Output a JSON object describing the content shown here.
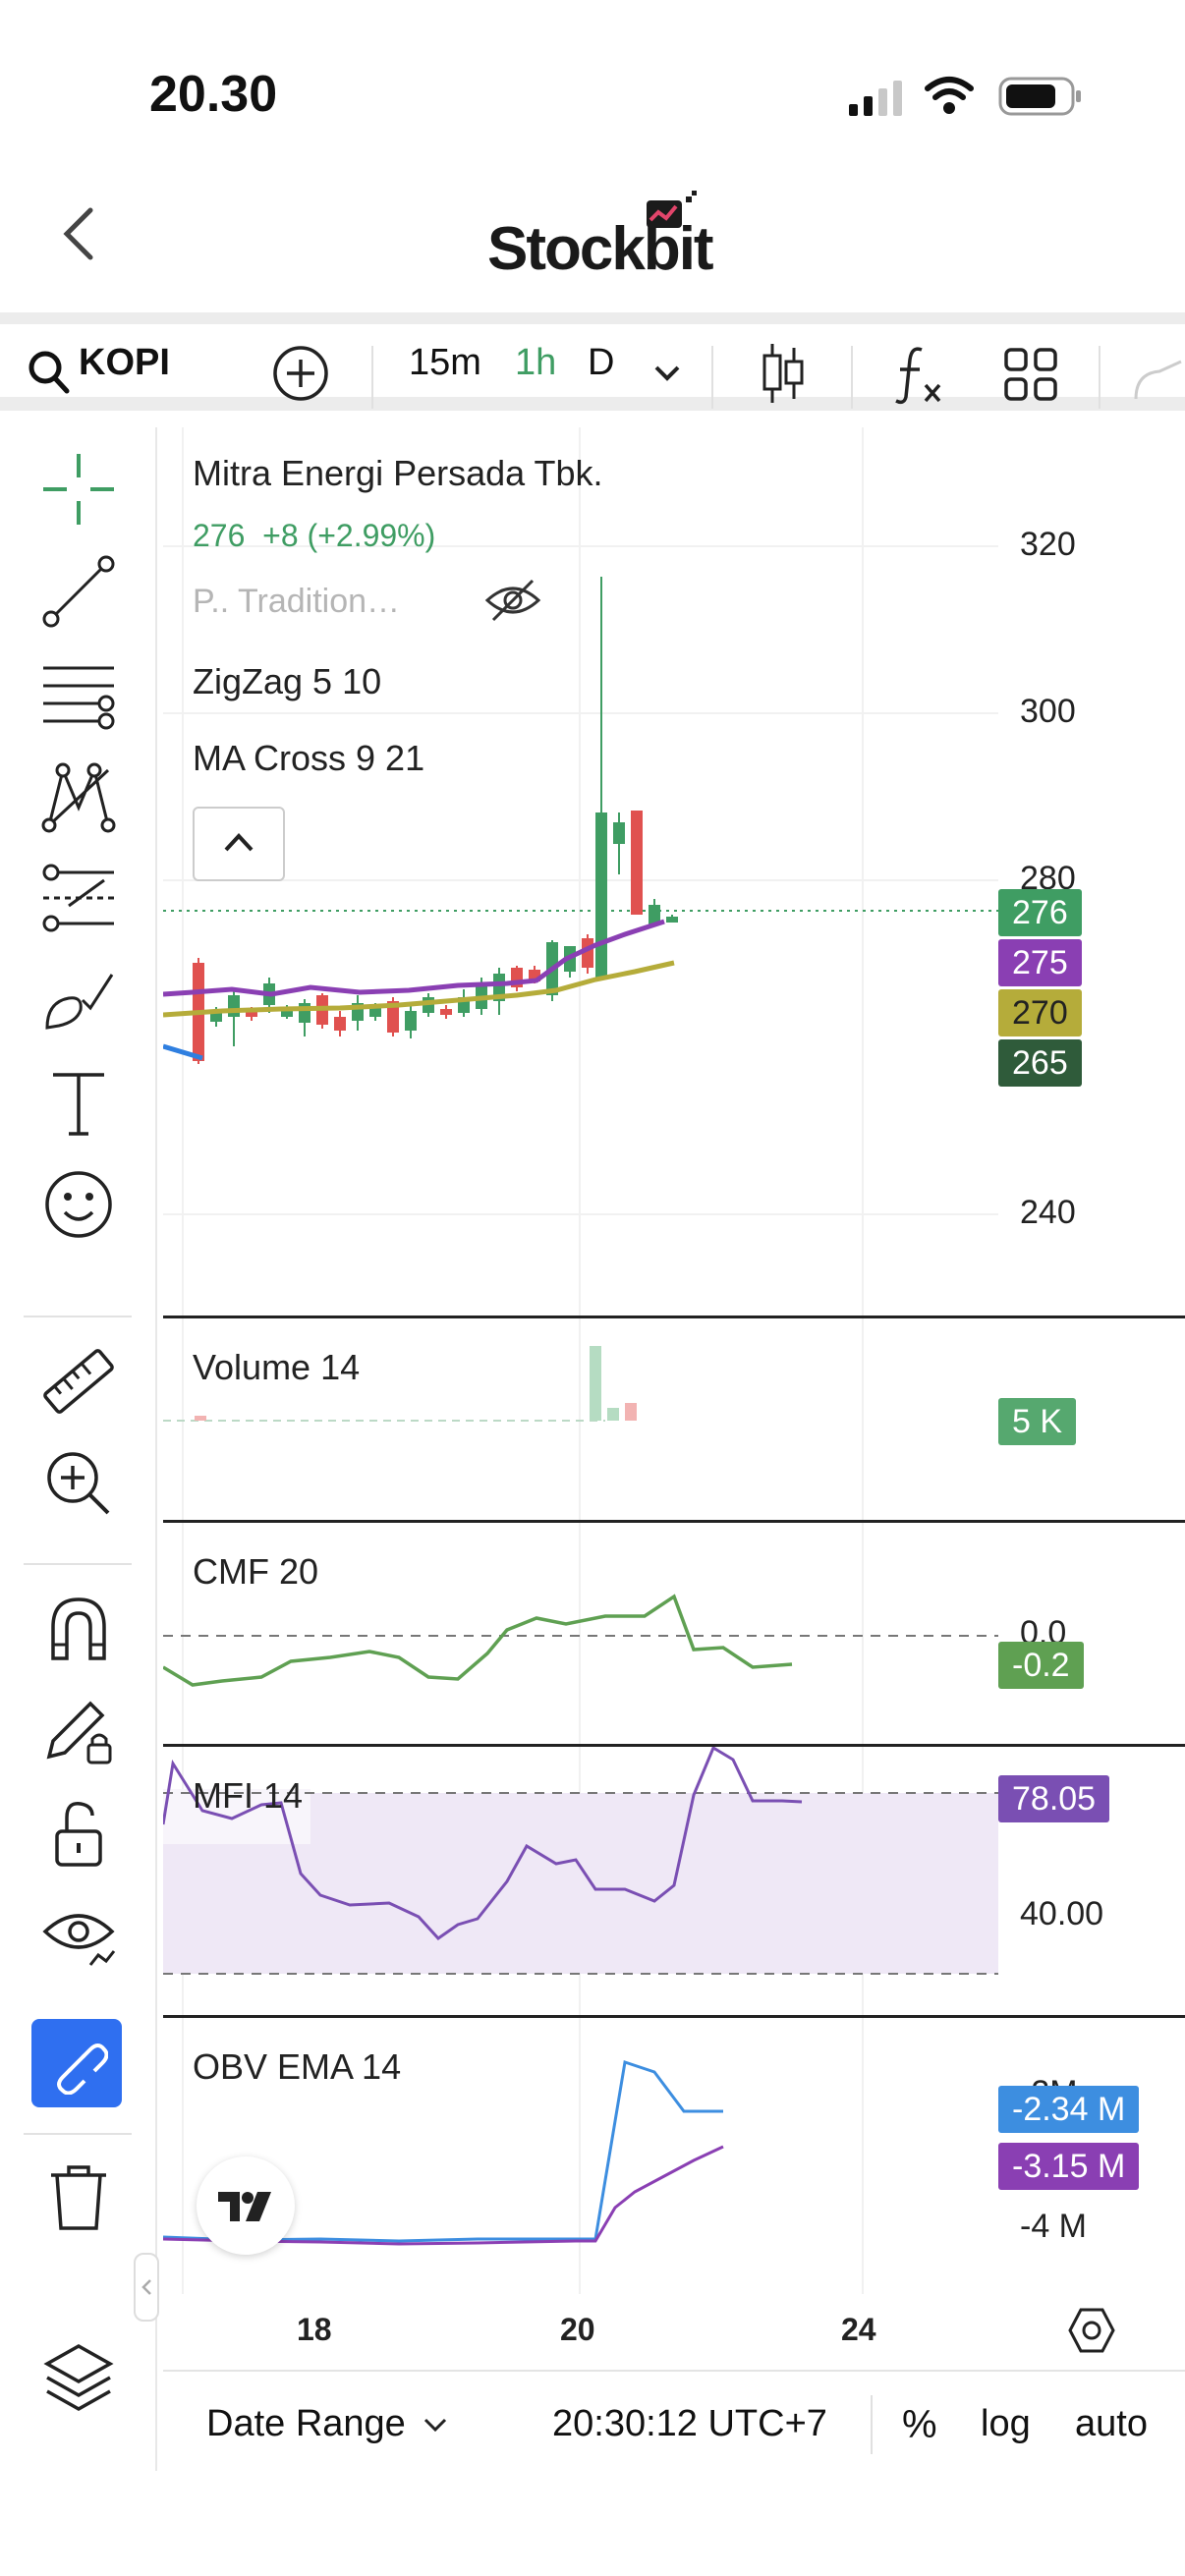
{
  "status_bar": {
    "time": "20.30"
  },
  "nav": {
    "brand": "Stockbit"
  },
  "toolbar": {
    "symbol": "KOPI",
    "intervals": [
      "15m",
      "1h",
      "D"
    ],
    "active_interval": "1h"
  },
  "legend": {
    "name": "Mitra Energi Persada Tbk.",
    "price": "276",
    "change": "+8 (+2.99%)",
    "session": "P.. Tradition…",
    "indicators": [
      "ZigZag 5 10",
      "MA Cross 9 21"
    ]
  },
  "price_axis": {
    "labels": [
      "320",
      "300",
      "280",
      "240"
    ]
  },
  "tags": [
    {
      "text": "276",
      "color": "#3f9d63"
    },
    {
      "text": "275",
      "color": "#8a3fb3"
    },
    {
      "text": "270",
      "color": "#b5ac3a"
    },
    {
      "text": "265",
      "color": "#2f5b3a"
    }
  ],
  "volume": {
    "title": "Volume 14",
    "tag": "5 K"
  },
  "cmf": {
    "title": "CMF 20",
    "zero": "0.0",
    "tag": "-0.2"
  },
  "mfi": {
    "title": "MFI 14",
    "tag": "78.05",
    "level": "40.00"
  },
  "obv": {
    "title": "OBV EMA 14",
    "top": "-2M",
    "tag1": "-2.34 M",
    "tag2": "-3.15 M",
    "bottom": "-4 M"
  },
  "time_axis": {
    "labels": [
      "18",
      "20",
      "24"
    ]
  },
  "footer": {
    "date_range": "Date Range",
    "clock": "20:30:12 UTC+7",
    "percent": "%",
    "log": "log",
    "auto": "auto"
  },
  "colors": {
    "up": "#3f9d63",
    "down": "#e0514f",
    "accent": "#2f6ff0",
    "mfi_fill": "#efe8f6"
  }
}
